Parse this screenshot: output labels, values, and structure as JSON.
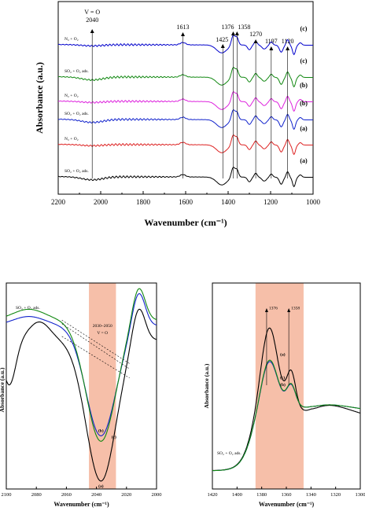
{
  "chart_data": [
    {
      "type": "line",
      "xlabel": "Wavenumber (cm⁻¹)",
      "ylabel": "Absorbance (a.u.)",
      "xlim": [
        2200,
        1000
      ],
      "x_ticks": [
        "2200",
        "2000",
        "1800",
        "1600",
        "1400",
        "1200",
        "1000"
      ],
      "grid": false,
      "series": [
        {
          "name": "N₂ + O₂",
          "tag": "(c)",
          "color": "#0000cc"
        },
        {
          "name": "SO₂ + O₂ ads.",
          "tag": "(c)",
          "color": "#118811"
        },
        {
          "name": "N₂ + O₂",
          "tag": "(b)",
          "color": "#dd22dd"
        },
        {
          "name": "SO₂ + O₂ ads.",
          "tag": "(b)",
          "color": "#1122cc"
        },
        {
          "name": "N₂ + O₂",
          "tag": "(a)",
          "color": "#dd2222"
        },
        {
          "name": "SO₂ + O₂ ads.",
          "tag": "(a)",
          "color": "#000000"
        }
      ],
      "annotations": [
        {
          "text": "V = O",
          "x": 2040
        },
        {
          "text": "2040",
          "x": 2040
        },
        {
          "text": "1613",
          "x": 1613
        },
        {
          "text": "1425",
          "x": 1425
        },
        {
          "text": "1376",
          "x": 1376
        },
        {
          "text": "1358",
          "x": 1358
        },
        {
          "text": "1270",
          "x": 1270
        },
        {
          "text": "1197",
          "x": 1197
        },
        {
          "text": "1120",
          "x": 1120
        }
      ]
    },
    {
      "type": "line",
      "xlabel": "Wavenumber (cm⁻¹)",
      "ylabel": "Absorbance (a.u.)",
      "xlim": [
        2100,
        2000
      ],
      "x_ticks": [
        "2100",
        "2080",
        "2060",
        "2040",
        "2020",
        "2000"
      ],
      "highlight": {
        "from": 2045,
        "to": 2027,
        "label": "2030~2050",
        "label2": "V = O"
      },
      "legend_text": "SO₂ + O₂ ads.",
      "series": [
        {
          "tag": "(a)",
          "color": "#000000"
        },
        {
          "tag": "(b)",
          "color": "#1122cc"
        },
        {
          "tag": "(c)",
          "color": "#118811"
        }
      ]
    },
    {
      "type": "line",
      "xlabel": "Wavenumber (cm⁻¹)",
      "ylabel": "Absorbance (a.u.)",
      "xlim": [
        1420,
        1300
      ],
      "x_ticks": [
        "1420",
        "1400",
        "1380",
        "1360",
        "1340",
        "1320",
        "1300"
      ],
      "highlight": {
        "from": 1385,
        "to": 1346
      },
      "legend_text": "SO₂ + O₂ ads.",
      "annotations": [
        {
          "text": "1376",
          "x": 1376
        },
        {
          "text": "1358",
          "x": 1358
        }
      ],
      "series": [
        {
          "tag": "(a)",
          "color": "#000000"
        },
        {
          "tag": "(b)",
          "color": "#1122cc"
        },
        {
          "tag": "(c)",
          "color": "#118811"
        }
      ]
    }
  ]
}
